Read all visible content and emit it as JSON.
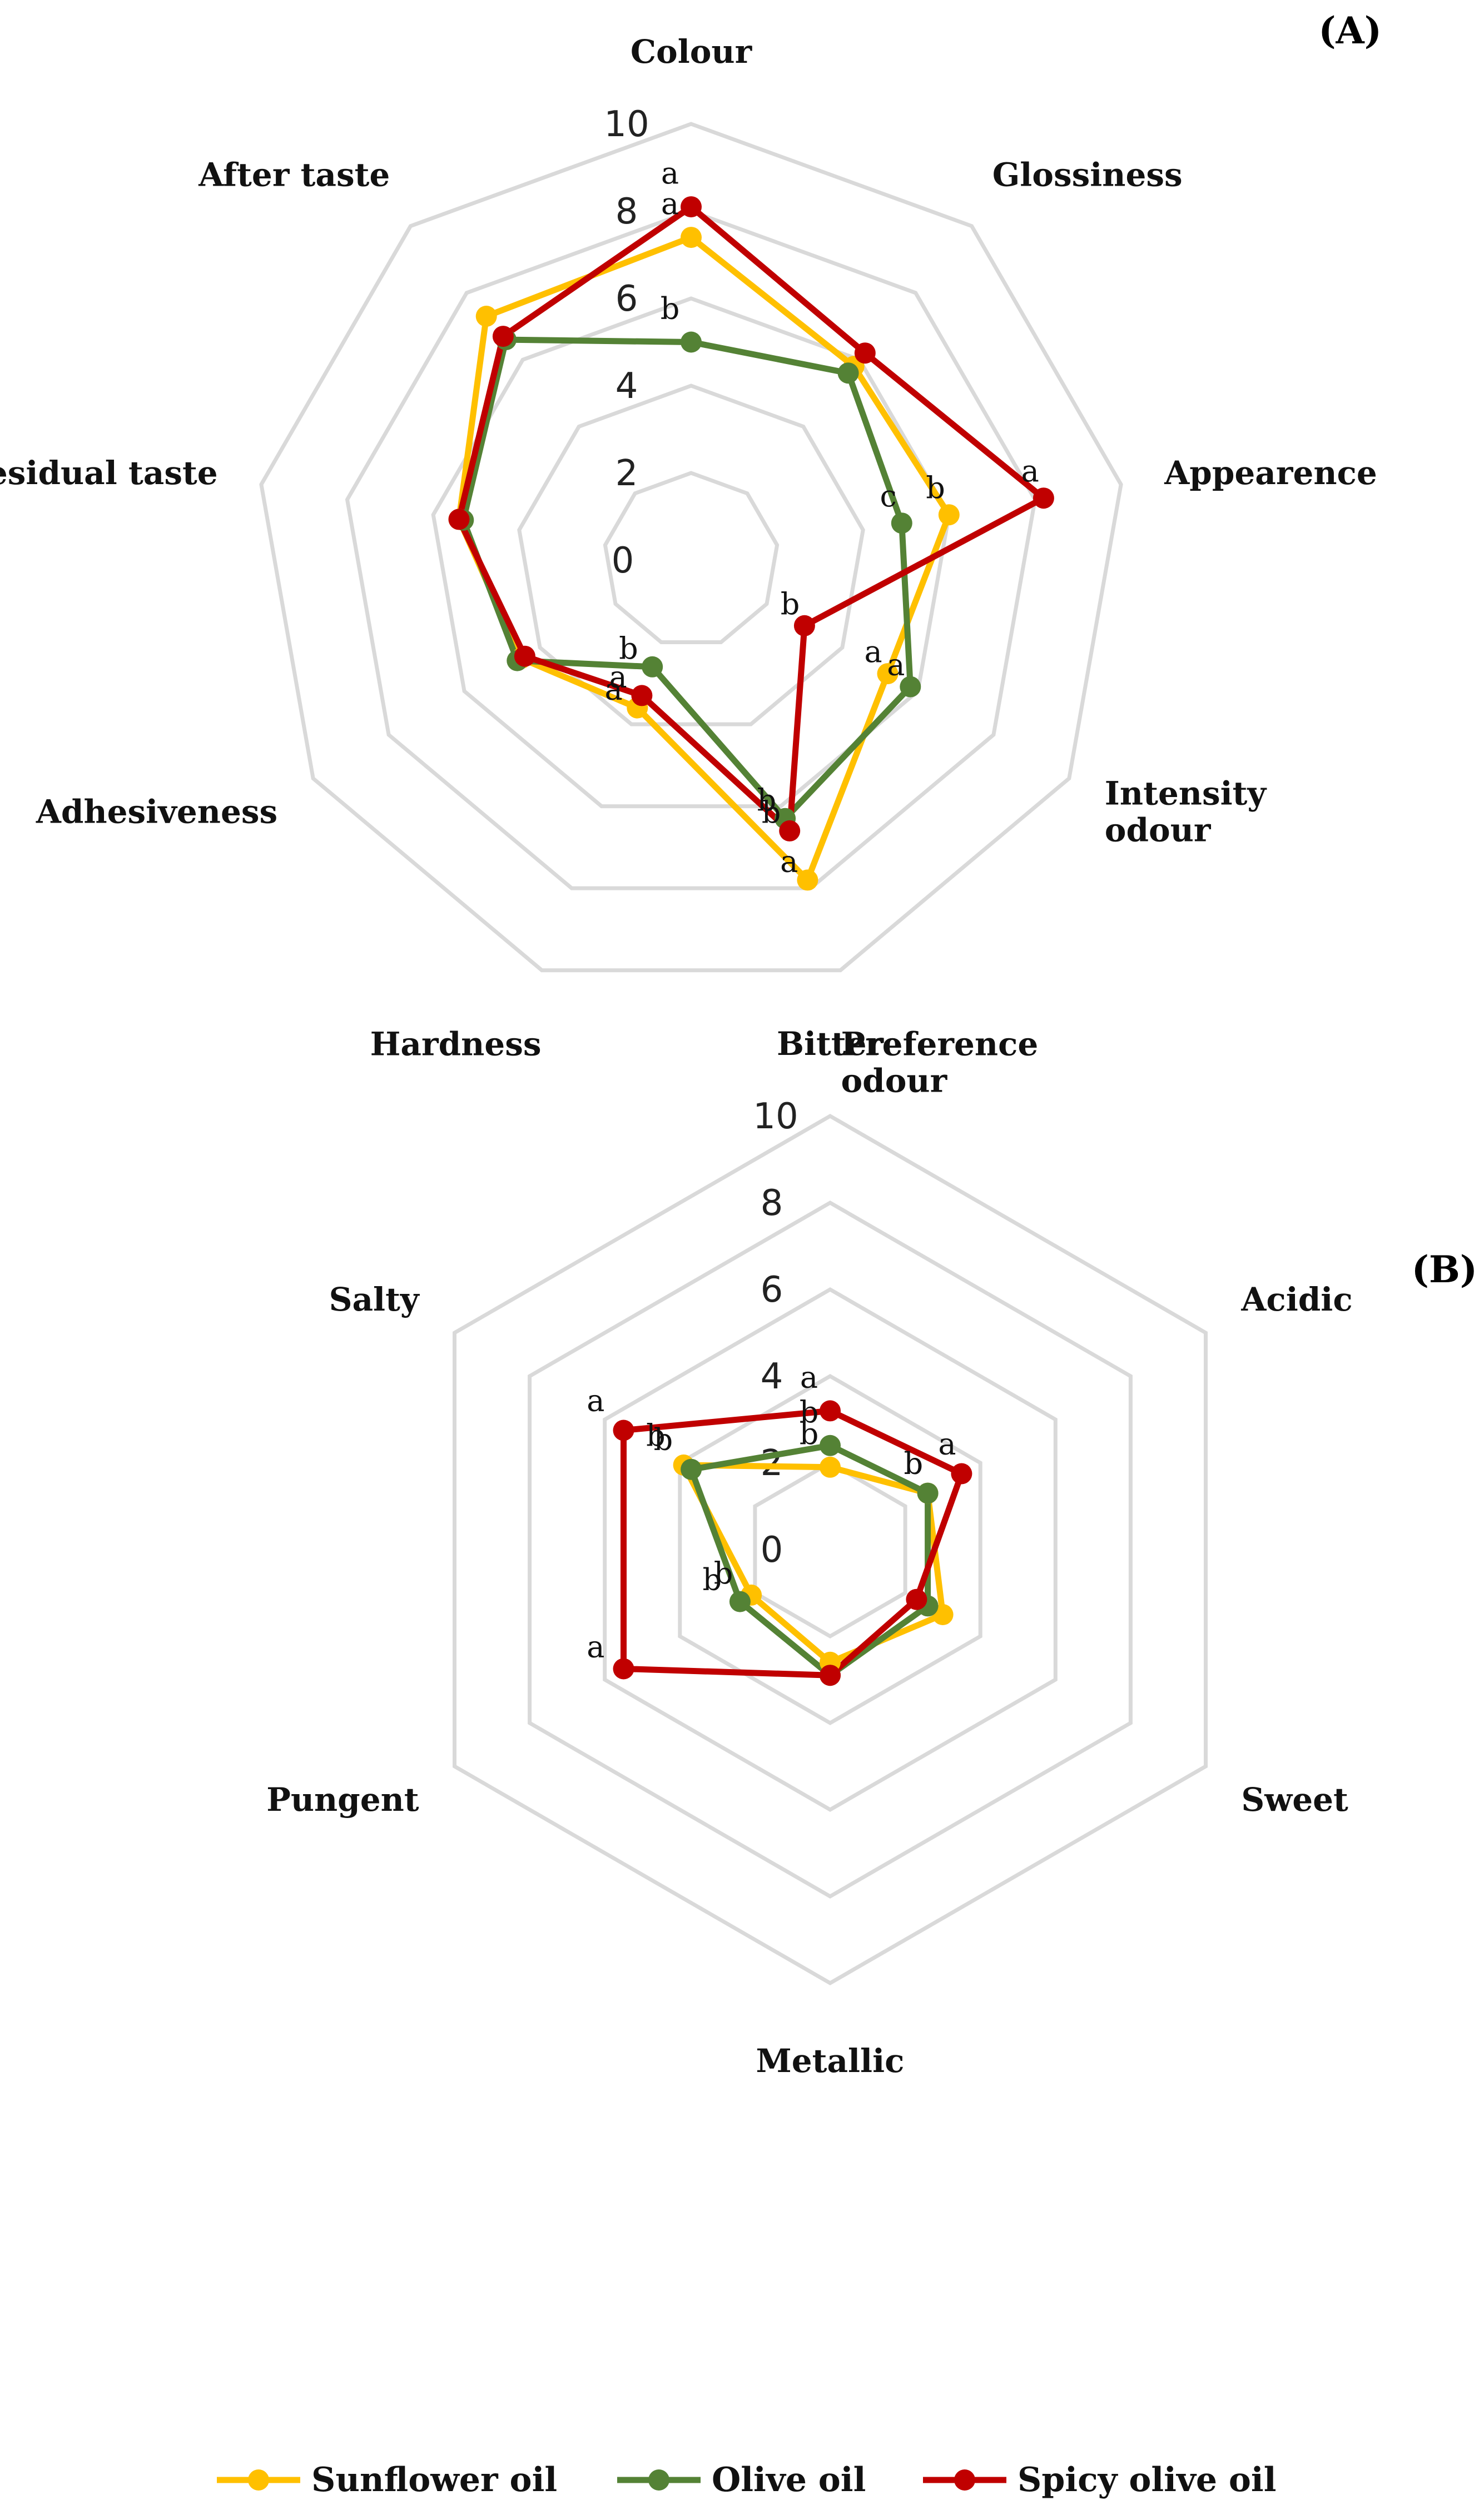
{
  "colors": {
    "Sunflower oil": "#ffc000",
    "Olive oil": "#548235",
    "Spicy olive oil": "#c00000",
    "grid": "#d9d9d9"
  },
  "legend": {
    "placement": "bottom",
    "items": [
      "Sunflower oil",
      "Olive oil",
      "Spicy olive oil"
    ]
  },
  "chart_data": [
    {
      "type": "radar",
      "panel_label": "(A)",
      "rlim": [
        0,
        10
      ],
      "ticks": [
        "0",
        "2",
        "4",
        "6",
        "8",
        "10"
      ],
      "grid": true,
      "categories": [
        "Colour",
        "Glossiness",
        "Appearence",
        "Intensity odour",
        "Preference odour",
        "Hardness",
        "Adhesiveness",
        "Residual taste",
        "After taste"
      ],
      "category_lines": [
        [
          "Colour"
        ],
        [
          "Glossiness"
        ],
        [
          "Appearence"
        ],
        [
          "Intensity",
          "odour"
        ],
        [
          "Preference",
          "odour"
        ],
        [
          "Hardness"
        ],
        [
          "Adhesiveness"
        ],
        [
          "Residual taste"
        ],
        [
          "After taste"
        ]
      ],
      "series": [
        {
          "name": "Sunflower oil",
          "values": [
            7.4,
            5.8,
            6.0,
            5.2,
            7.8,
            3.6,
            4.5,
            5.4,
            7.3
          ]
        },
        {
          "name": "Olive oil",
          "values": [
            5.0,
            5.6,
            4.9,
            5.8,
            6.3,
            2.6,
            4.6,
            5.3,
            6.6
          ]
        },
        {
          "name": "Spicy olive oil",
          "values": [
            8.1,
            6.2,
            8.2,
            3.0,
            6.6,
            3.3,
            4.4,
            5.4,
            6.7
          ]
        }
      ],
      "significance_letters": [
        {
          "category": "Colour",
          "series": "Spicy olive oil",
          "text": "a"
        },
        {
          "category": "Colour",
          "series": "Sunflower oil",
          "text": "a"
        },
        {
          "category": "Colour",
          "series": "Olive oil",
          "text": "b"
        },
        {
          "category": "Appearence",
          "series": "Spicy olive oil",
          "text": "a"
        },
        {
          "category": "Appearence",
          "series": "Sunflower oil",
          "text": "b"
        },
        {
          "category": "Appearence",
          "series": "Olive oil",
          "text": "c"
        },
        {
          "category": "Intensity odour",
          "series": "Sunflower oil",
          "text": "a"
        },
        {
          "category": "Intensity odour",
          "series": "Olive oil",
          "text": "a"
        },
        {
          "category": "Intensity odour",
          "series": "Spicy olive oil",
          "text": "b"
        },
        {
          "category": "Preference odour",
          "series": "Sunflower oil",
          "text": "a"
        },
        {
          "category": "Preference odour",
          "series": "Spicy olive oil",
          "text": "b"
        },
        {
          "category": "Preference odour",
          "series": "Olive oil",
          "text": "b"
        },
        {
          "category": "Hardness",
          "series": "Sunflower oil",
          "text": "a"
        },
        {
          "category": "Hardness",
          "series": "Spicy olive oil",
          "text": "a"
        },
        {
          "category": "Hardness",
          "series": "Olive oil",
          "text": "b"
        }
      ]
    },
    {
      "type": "radar",
      "panel_label": "(B)",
      "rlim": [
        0,
        10
      ],
      "ticks": [
        "0",
        "2",
        "4",
        "6",
        "8",
        "10"
      ],
      "grid": true,
      "categories": [
        "Bitter",
        "Acidic",
        "Sweet",
        "Metallic",
        "Pungent",
        "Salty"
      ],
      "category_lines": [
        [
          "Bitter"
        ],
        [
          "Acidic"
        ],
        [
          "Sweet"
        ],
        [
          "Metallic"
        ],
        [
          "Pungent"
        ],
        [
          "Salty"
        ]
      ],
      "series": [
        {
          "name": "Sunflower oil",
          "values": [
            1.9,
            2.6,
            3.0,
            2.6,
            2.1,
            3.9
          ]
        },
        {
          "name": "Olive oil",
          "values": [
            2.4,
            2.6,
            2.6,
            2.9,
            2.4,
            3.7
          ]
        },
        {
          "name": "Spicy olive oil",
          "values": [
            3.2,
            3.5,
            2.3,
            2.9,
            5.5,
            5.5
          ]
        }
      ],
      "significance_letters": [
        {
          "category": "Bitter",
          "series": "Spicy olive oil",
          "text": "a"
        },
        {
          "category": "Bitter",
          "series": "Olive oil",
          "text": "b"
        },
        {
          "category": "Bitter",
          "series": "Sunflower oil",
          "text": "b"
        },
        {
          "category": "Acidic",
          "series": "Spicy olive oil",
          "text": "a"
        },
        {
          "category": "Acidic",
          "series": "Olive oil",
          "text": "b"
        },
        {
          "category": "Acidic",
          "series": "Sunflower oil",
          "text": "b"
        },
        {
          "category": "Pungent",
          "series": "Spicy olive oil",
          "text": "a"
        },
        {
          "category": "Pungent",
          "series": "Olive oil",
          "text": "b"
        },
        {
          "category": "Pungent",
          "series": "Sunflower oil",
          "text": "b"
        },
        {
          "category": "Salty",
          "series": "Spicy olive oil",
          "text": "a"
        },
        {
          "category": "Salty",
          "series": "Sunflower oil",
          "text": "b"
        },
        {
          "category": "Salty",
          "series": "Olive oil",
          "text": "b"
        }
      ]
    }
  ]
}
